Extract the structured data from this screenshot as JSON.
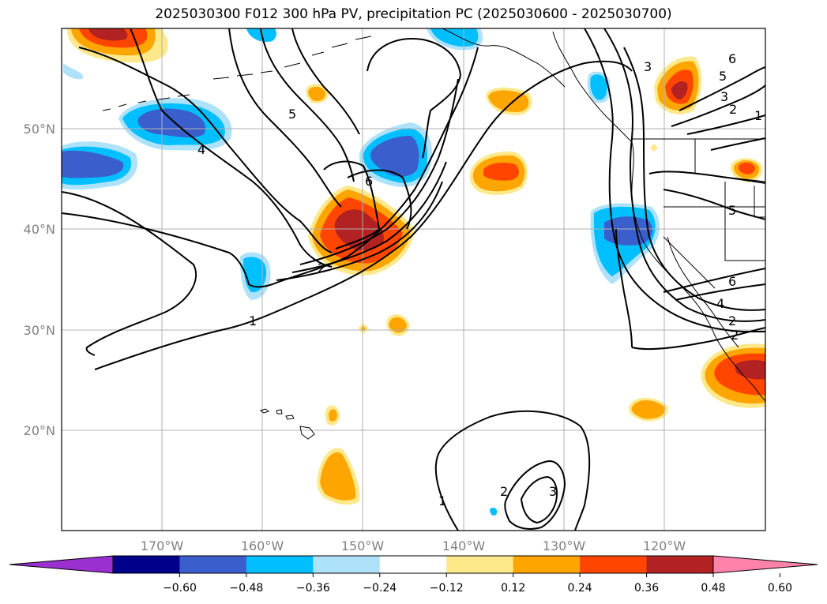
{
  "title": "2025030300 F012 300 hPa PV, precipitation PC (2025030600 - 2025030700)",
  "axes": {
    "lat_labels": [
      "50°N",
      "40°N",
      "30°N",
      "20°N"
    ],
    "lon_labels": [
      "170°W",
      "160°W",
      "150°W",
      "140°W",
      "130°W",
      "120°W"
    ]
  },
  "colorbar": {
    "labels": [
      "−0.60",
      "−0.48",
      "−0.36",
      "−0.24",
      "−0.12",
      "0.12",
      "0.24",
      "0.36",
      "0.48",
      "0.60"
    ],
    "colors": [
      "#9a30d0",
      "#00008b",
      "#3a5fcd",
      "#00bfff",
      "#aee2fa",
      "#ffffff",
      "#fde88a",
      "#ffa500",
      "#ff4500",
      "#b22222",
      "#ff82ab"
    ]
  },
  "contour_labels": [
    "1",
    "2",
    "4",
    "5",
    "6",
    "1",
    "2",
    "3",
    "5",
    "6",
    "3",
    "2",
    "6",
    "5",
    "4",
    "2",
    "1",
    "2",
    "3"
  ]
}
